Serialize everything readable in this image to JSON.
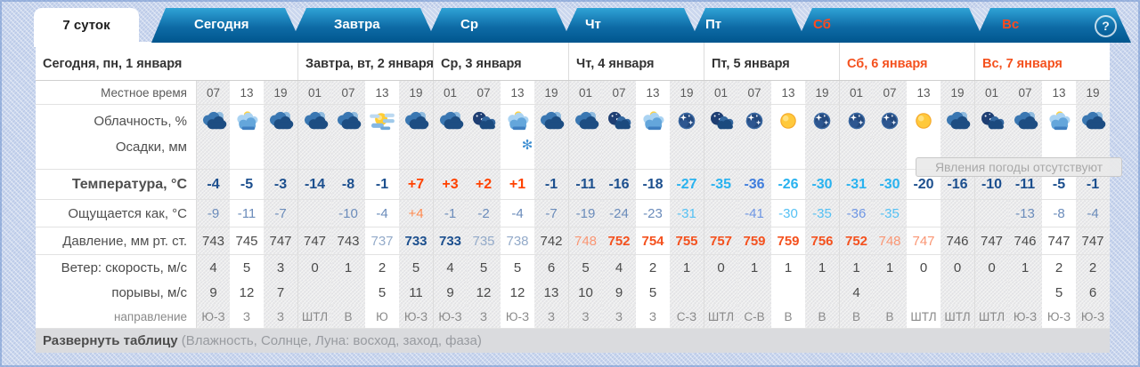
{
  "tabs": {
    "active_label": "7 суток",
    "items": [
      {
        "label": "Сегодня",
        "accent": false
      },
      {
        "label": "Завтра",
        "accent": false
      },
      {
        "label": "Ср",
        "accent": false
      },
      {
        "label": "Чт",
        "accent": false
      },
      {
        "label": "Пт",
        "accent": false
      },
      {
        "label": "Сб",
        "accent": true
      },
      {
        "label": "Вс",
        "accent": true
      }
    ],
    "help_label": "?"
  },
  "row_labels": [
    "Местное время",
    "Облачность, %",
    "Осадки, мм",
    "Температура, °C",
    "Ощущается как, °C",
    "Давление, мм рт. ст.",
    "Ветер: скорость, м/с",
    "порывы, м/с",
    "направление"
  ],
  "tooltip": {
    "text": "Явления погоды отсутствуют"
  },
  "footer": {
    "expand": "Развернуть таблицу",
    "hint": "(Влажность, Солнце, Луна: восход, заход, фаза)"
  },
  "colors": {
    "accent": "#f4511e",
    "tab_top": "#2fa3d6",
    "tab_bottom": "#00568e",
    "navy": "#1c4f8e",
    "hot": "#ff4200",
    "cyan": "#29b2ef"
  },
  "days": [
    {
      "title": "Сегодня, пн, 1 января",
      "accent": false,
      "cols": [
        {
          "time": "07",
          "icon": "clouds",
          "precip": "",
          "temp": "-4",
          "temp_c": "navy",
          "feels": "-9",
          "feels_c": "blue",
          "press": "743",
          "press_c": "norm",
          "wind": "4",
          "gust": "9",
          "gust_c": "norm",
          "dir": "Ю-З",
          "highlight": false
        },
        {
          "time": "13",
          "icon": "clouds-sun",
          "precip": "",
          "temp": "-5",
          "temp_c": "navy",
          "feels": "-11",
          "feels_c": "blue",
          "press": "745",
          "press_c": "norm",
          "wind": "5",
          "gust": "12",
          "gust_c": "red",
          "dir": "З",
          "highlight": true
        },
        {
          "time": "19",
          "icon": "clouds",
          "precip": "",
          "temp": "-3",
          "temp_c": "navy",
          "feels": "-7",
          "feels_c": "blue",
          "press": "747",
          "press_c": "norm",
          "wind": "3",
          "gust": "7",
          "gust_c": "norm",
          "dir": "З",
          "highlight": false
        }
      ]
    },
    {
      "title": "Завтра, вт, 2 января",
      "accent": false,
      "cols": [
        {
          "time": "01",
          "icon": "clouds",
          "precip": "",
          "temp": "-14",
          "temp_c": "navy",
          "feels": "",
          "feels_c": "blue",
          "press": "747",
          "press_c": "norm",
          "wind": "0",
          "gust": "",
          "gust_c": "norm",
          "dir": "ШТЛ",
          "highlight": false
        },
        {
          "time": "07",
          "icon": "clouds",
          "precip": "",
          "temp": "-8",
          "temp_c": "navy",
          "feels": "-10",
          "feels_c": "blue",
          "press": "743",
          "press_c": "norm",
          "wind": "1",
          "gust": "",
          "gust_c": "norm",
          "dir": "В",
          "highlight": false
        },
        {
          "time": "13",
          "icon": "sun-clouds",
          "precip": "",
          "temp": "-1",
          "temp_c": "navy",
          "feels": "-4",
          "feels_c": "blue",
          "press": "737",
          "press_c": "muted",
          "wind": "2",
          "gust": "5",
          "gust_c": "norm",
          "dir": "Ю",
          "highlight": true
        },
        {
          "time": "19",
          "icon": "clouds",
          "precip": "",
          "temp": "+7",
          "temp_c": "hot",
          "feels": "+4",
          "feels_c": "hotlight",
          "press": "733",
          "press_c": "navyb",
          "wind": "5",
          "gust": "11",
          "gust_c": "red",
          "dir": "Ю-З",
          "highlight": false
        }
      ]
    },
    {
      "title": "Ср, 3 января",
      "accent": false,
      "cols": [
        {
          "time": "01",
          "icon": "clouds",
          "precip": "",
          "temp": "+3",
          "temp_c": "hot",
          "feels": "-1",
          "feels_c": "blue",
          "press": "733",
          "press_c": "navyb",
          "wind": "4",
          "gust": "9",
          "gust_c": "norm",
          "dir": "Ю-З",
          "highlight": false
        },
        {
          "time": "07",
          "icon": "clouds-moon",
          "precip": "",
          "temp": "+2",
          "temp_c": "hot",
          "feels": "-2",
          "feels_c": "blue",
          "press": "735",
          "press_c": "muted",
          "wind": "5",
          "gust": "12",
          "gust_c": "red",
          "dir": "З",
          "highlight": false
        },
        {
          "time": "13",
          "icon": "clouds-sun",
          "precip": "snow",
          "temp": "+1",
          "temp_c": "hot",
          "feels": "-4",
          "feels_c": "blue",
          "press": "738",
          "press_c": "muted",
          "wind": "5",
          "gust": "12",
          "gust_c": "red",
          "dir": "Ю-З",
          "highlight": true
        },
        {
          "time": "19",
          "icon": "clouds",
          "precip": "",
          "temp": "-1",
          "temp_c": "navy",
          "feels": "-7",
          "feels_c": "blue",
          "press": "742",
          "press_c": "norm",
          "wind": "6",
          "gust": "13",
          "gust_c": "red",
          "dir": "З",
          "highlight": false
        }
      ]
    },
    {
      "title": "Чт, 4 января",
      "accent": false,
      "cols": [
        {
          "time": "01",
          "icon": "clouds",
          "precip": "",
          "temp": "-11",
          "temp_c": "navy",
          "feels": "-19",
          "feels_c": "blue",
          "press": "748",
          "press_c": "salmon",
          "wind": "5",
          "gust": "10",
          "gust_c": "norm",
          "dir": "З",
          "highlight": false
        },
        {
          "time": "07",
          "icon": "clouds-moon",
          "precip": "",
          "temp": "-16",
          "temp_c": "navy",
          "feels": "-24",
          "feels_c": "blue",
          "press": "752",
          "press_c": "redb",
          "wind": "4",
          "gust": "9",
          "gust_c": "norm",
          "dir": "З",
          "highlight": false
        },
        {
          "time": "13",
          "icon": "clouds-sun",
          "precip": "",
          "temp": "-18",
          "temp_c": "navy",
          "feels": "-23",
          "feels_c": "blue",
          "press": "754",
          "press_c": "redb",
          "wind": "2",
          "gust": "5",
          "gust_c": "norm",
          "dir": "З",
          "highlight": true
        },
        {
          "time": "19",
          "icon": "moon",
          "precip": "",
          "temp": "-27",
          "temp_c": "cyan",
          "feels": "-31",
          "feels_c": "cyanf",
          "press": "755",
          "press_c": "redb",
          "wind": "1",
          "gust": "",
          "gust_c": "norm",
          "dir": "С-З",
          "highlight": false
        }
      ]
    },
    {
      "title": "Пт, 5 января",
      "accent": false,
      "cols": [
        {
          "time": "01",
          "icon": "clouds-moon",
          "precip": "",
          "temp": "-35",
          "temp_c": "cyan",
          "feels": "",
          "feels_c": "blue",
          "press": "757",
          "press_c": "redb",
          "wind": "0",
          "gust": "",
          "gust_c": "norm",
          "dir": "ШТЛ",
          "highlight": false
        },
        {
          "time": "07",
          "icon": "moon",
          "precip": "",
          "temp": "-36",
          "temp_c": "royal",
          "feels": "-41",
          "feels_c": "royalf",
          "press": "759",
          "press_c": "redb",
          "wind": "1",
          "gust": "",
          "gust_c": "norm",
          "dir": "С-В",
          "highlight": false
        },
        {
          "time": "13",
          "icon": "sun",
          "precip": "",
          "temp": "-26",
          "temp_c": "cyan",
          "feels": "-30",
          "feels_c": "cyanf",
          "press": "759",
          "press_c": "redb",
          "wind": "1",
          "gust": "",
          "gust_c": "norm",
          "dir": "В",
          "highlight": true
        },
        {
          "time": "19",
          "icon": "moon",
          "precip": "",
          "temp": "-30",
          "temp_c": "cyan",
          "feels": "-35",
          "feels_c": "cyanf",
          "press": "756",
          "press_c": "redb",
          "wind": "1",
          "gust": "",
          "gust_c": "norm",
          "dir": "В",
          "highlight": false
        }
      ]
    },
    {
      "title": "Сб, 6 января",
      "accent": true,
      "cols": [
        {
          "time": "01",
          "icon": "moon",
          "precip": "",
          "temp": "-31",
          "temp_c": "cyan",
          "feels": "-36",
          "feels_c": "royalf",
          "press": "752",
          "press_c": "redb",
          "wind": "1",
          "gust": "4",
          "gust_c": "norm",
          "dir": "В",
          "highlight": false
        },
        {
          "time": "07",
          "icon": "moon",
          "precip": "",
          "temp": "-30",
          "temp_c": "cyan",
          "feels": "-35",
          "feels_c": "cyanf",
          "press": "748",
          "press_c": "salmon",
          "wind": "1",
          "gust": "",
          "gust_c": "norm",
          "dir": "В",
          "highlight": false
        },
        {
          "time": "13",
          "icon": "sun",
          "precip": "",
          "temp": "-20",
          "temp_c": "navy",
          "feels": "",
          "feels_c": "blue",
          "press": "747",
          "press_c": "salmon",
          "wind": "0",
          "gust": "",
          "gust_c": "norm",
          "dir": "ШТЛ",
          "highlight": true
        },
        {
          "time": "19",
          "icon": "clouds",
          "precip": "",
          "temp": "-16",
          "temp_c": "navy",
          "feels": "",
          "feels_c": "blue",
          "press": "746",
          "press_c": "norm",
          "wind": "0",
          "gust": "",
          "gust_c": "norm",
          "dir": "ШТЛ",
          "highlight": false
        }
      ]
    },
    {
      "title": "Вс, 7 января",
      "accent": true,
      "cols": [
        {
          "time": "01",
          "icon": "clouds-moon",
          "precip": "",
          "temp": "-10",
          "temp_c": "navy",
          "feels": "",
          "feels_c": "blue",
          "press": "747",
          "press_c": "norm",
          "wind": "0",
          "gust": "",
          "gust_c": "norm",
          "dir": "ШТЛ",
          "highlight": false
        },
        {
          "time": "07",
          "icon": "clouds",
          "precip": "",
          "temp": "-11",
          "temp_c": "navy",
          "feels": "-13",
          "feels_c": "blue",
          "press": "746",
          "press_c": "norm",
          "wind": "1",
          "gust": "",
          "gust_c": "norm",
          "dir": "Ю-З",
          "highlight": false
        },
        {
          "time": "13",
          "icon": "clouds-sun",
          "precip": "",
          "temp": "-5",
          "temp_c": "navy",
          "feels": "-8",
          "feels_c": "blue",
          "press": "747",
          "press_c": "norm",
          "wind": "2",
          "gust": "5",
          "gust_c": "norm",
          "dir": "Ю-З",
          "highlight": true
        },
        {
          "time": "19",
          "icon": "clouds",
          "precip": "",
          "temp": "-1",
          "temp_c": "navy",
          "feels": "-4",
          "feels_c": "blue",
          "press": "747",
          "press_c": "norm",
          "wind": "2",
          "gust": "6",
          "gust_c": "norm",
          "dir": "Ю-З",
          "highlight": false
        }
      ]
    }
  ]
}
